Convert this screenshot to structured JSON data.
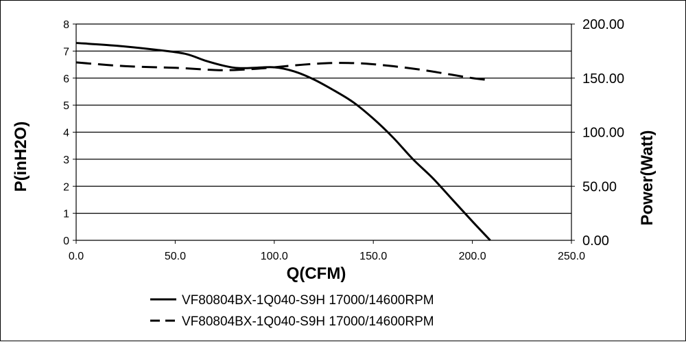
{
  "chart_data": {
    "type": "line",
    "xlabel": "Q(CFM)",
    "ylabel_left": "P(inH2O)",
    "ylabel_right": "Power(Watt)",
    "xlim": [
      0,
      250
    ],
    "ylim_left": [
      0,
      8
    ],
    "ylim_right": [
      0,
      200
    ],
    "x_ticks": [
      "0.0",
      "50.0",
      "100.0",
      "150.0",
      "200.0",
      "250.0"
    ],
    "y_left_ticks": [
      "0",
      "1",
      "2",
      "3",
      "4",
      "5",
      "6",
      "7",
      "8"
    ],
    "y_right_ticks": [
      "0.00",
      "50.00",
      "100.00",
      "150.00",
      "200.00"
    ],
    "grid": "horizontal",
    "legend_position": "bottom",
    "series": [
      {
        "name": "VF80804BX-1Q040-S9H 17000/14600RPM",
        "axis": "left",
        "style": "solid",
        "color": "#000000",
        "x": [
          0,
          20,
          40,
          55,
          65,
          75,
          82,
          90,
          100,
          110,
          120,
          130,
          140,
          150,
          160,
          170,
          180,
          190,
          200,
          209
        ],
        "y": [
          7.3,
          7.2,
          7.05,
          6.9,
          6.65,
          6.45,
          6.37,
          6.38,
          6.4,
          6.25,
          5.95,
          5.55,
          5.1,
          4.5,
          3.8,
          3.0,
          2.3,
          1.5,
          0.7,
          0.0
        ]
      },
      {
        "name": "VF80804BX-1Q040-S9H 17000/14600RPM",
        "axis": "right",
        "style": "dashed",
        "color": "#000000",
        "x": [
          0,
          25,
          50,
          70,
          80,
          90,
          100,
          115,
          130,
          145,
          160,
          175,
          190,
          200,
          209
        ],
        "y": [
          164.5,
          161,
          159.5,
          157.5,
          157.5,
          158.5,
          160,
          162.5,
          164,
          163.5,
          161,
          157.5,
          153,
          150,
          148
        ]
      }
    ]
  }
}
